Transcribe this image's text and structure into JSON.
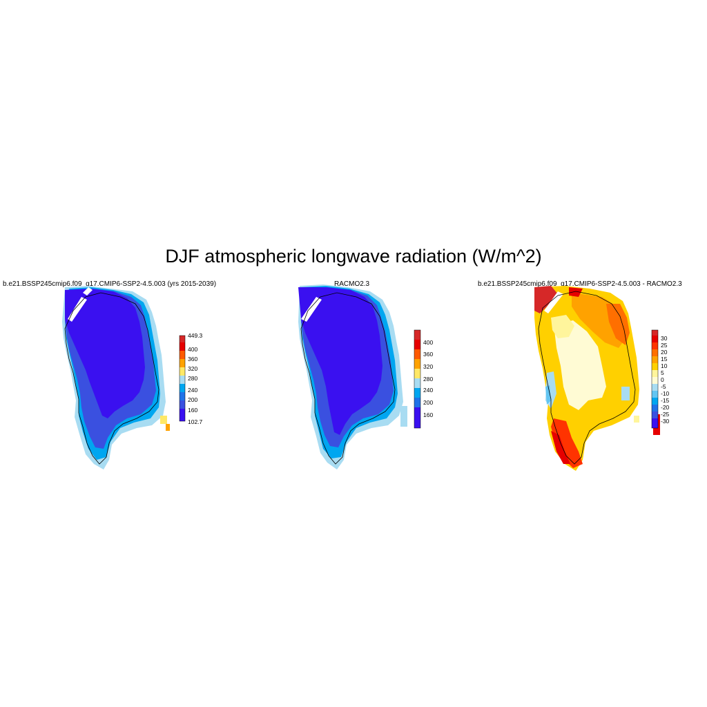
{
  "figure": {
    "title": "DJF atmospheric longwave radiation (W/m^2)"
  },
  "panels": [
    {
      "id": "model",
      "title": "b.e21.BSSP245cmip6.f09_g17.CMIP6-SSP2-4.5.003 (yrs 2015-2039)",
      "colorbar": {
        "labels": [
          "449.3",
          "400",
          "360",
          "320",
          "280",
          "240",
          "200",
          "160",
          "102.7"
        ],
        "colors": [
          "#d62828",
          "#e60000",
          "#ff5a00",
          "#ffa200",
          "#ffe866",
          "#a8dcf2",
          "#00a6f0",
          "#1f72e8",
          "#3a50e0",
          "#3a10f0"
        ]
      }
    },
    {
      "id": "obs",
      "title": "RACMO2.3",
      "colorbar": {
        "labels": [
          "400",
          "360",
          "320",
          "280",
          "240",
          "200",
          "160"
        ],
        "colors": [
          "#d62828",
          "#e60000",
          "#ff5a00",
          "#ffa200",
          "#ffe866",
          "#a8dcf2",
          "#00a6f0",
          "#1f72e8",
          "#3a10f0"
        ]
      }
    },
    {
      "id": "diff",
      "title": "b.e21.BSSP245cmip6.f09_g17.CMIP6-SSP2-4.5.003 - RACMO2.3",
      "colorbar": {
        "labels": [
          "30",
          "25",
          "20",
          "15",
          "10",
          "5",
          "0",
          "-5",
          "-10",
          "-15",
          "-20",
          "-25",
          "-30"
        ],
        "colors": [
          "#d62828",
          "#e60000",
          "#ff3300",
          "#ff6f00",
          "#ffa200",
          "#ffd000",
          "#fff59c",
          "#fffbd4",
          "#a8dcf2",
          "#63c5f2",
          "#00a6f0",
          "#1f72e8",
          "#3a50e0",
          "#3a10f0"
        ]
      }
    }
  ]
}
